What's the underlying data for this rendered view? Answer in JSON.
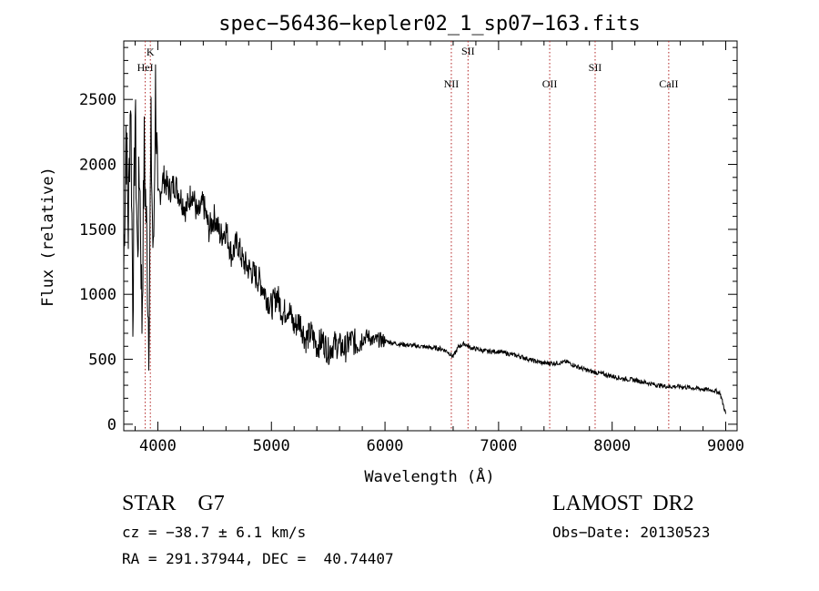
{
  "chart_data": {
    "type": "line",
    "title": "spec−56436−kepler02_1_sp07−163.fits",
    "xlabel": "Wavelength (Å)",
    "ylabel": "Flux (relative)",
    "xlim": [
      3700,
      9100
    ],
    "ylim": [
      -50,
      2950
    ],
    "xticks": [
      4000,
      5000,
      6000,
      7000,
      8000,
      9000
    ],
    "yticks": [
      0,
      500,
      1000,
      1500,
      2000,
      2500
    ],
    "xtick_labels": [
      "4000",
      "5000",
      "6000",
      "7000",
      "8000",
      "9000"
    ],
    "ytick_labels": [
      "0",
      "500",
      "1000",
      "1500",
      "2000",
      "2500"
    ],
    "line_color": "#000000",
    "marker_color": "#b22222",
    "lines": [
      {
        "name": "K",
        "wavelength": 3934
      },
      {
        "name": "HeI",
        "wavelength": 3889
      },
      {
        "name": "NII",
        "wavelength": 6584
      },
      {
        "name": "SII",
        "wavelength": 6731
      },
      {
        "name": "OII",
        "wavelength": 7450
      },
      {
        "name": "SII",
        "wavelength": 7850
      },
      {
        "name": "CaII",
        "wavelength": 8498
      }
    ],
    "series": [
      {
        "x": [
          3700,
          3720,
          3740,
          3760,
          3780,
          3800,
          3820,
          3840,
          3860,
          3880,
          3900,
          3920,
          3940,
          3960,
          3980,
          4000,
          4050,
          4100,
          4150,
          4200,
          4250,
          4300,
          4350,
          4400,
          4450,
          4500,
          4550,
          4600,
          4650,
          4700,
          4750,
          4800,
          4850,
          4900,
          4950,
          5000,
          5050,
          5100,
          5150,
          5200,
          5250,
          5300,
          5350,
          5400,
          5450,
          5500,
          5550,
          5600,
          5650,
          5700,
          5750,
          5800,
          5850,
          5900,
          5950,
          6000,
          6100,
          6200,
          6300,
          6400,
          6500,
          6550,
          6600,
          6650,
          6700,
          6750,
          6800,
          6900,
          7000,
          7100,
          7200,
          7300,
          7400,
          7500,
          7600,
          7700,
          7800,
          7900,
          8000,
          8100,
          8200,
          8300,
          8400,
          8500,
          8600,
          8700,
          8800,
          8900,
          8950,
          9000
        ],
        "y": [
          1200,
          2300,
          1500,
          2600,
          900,
          2400,
          1300,
          2000,
          800,
          2100,
          1500,
          700,
          2200,
          1200,
          2600,
          1700,
          1900,
          1800,
          1850,
          1750,
          1650,
          1800,
          1600,
          1700,
          1500,
          1600,
          1450,
          1500,
          1300,
          1400,
          1250,
          1200,
          1150,
          1100,
          1000,
          900,
          1000,
          850,
          900,
          750,
          800,
          650,
          700,
          600,
          650,
          560,
          620,
          600,
          580,
          650,
          620,
          660,
          680,
          640,
          650,
          640,
          620,
          610,
          600,
          590,
          580,
          560,
          520,
          600,
          620,
          590,
          580,
          560,
          560,
          540,
          520,
          490,
          470,
          470,
          480,
          440,
          410,
          390,
          370,
          350,
          340,
          320,
          300,
          290,
          290,
          280,
          270,
          260,
          240,
          80
        ]
      }
    ]
  },
  "info": {
    "sp_type": "STAR    G7",
    "survey": "LAMOST  DR2",
    "cz": "cz = −38.7 ± 6.1 km/s",
    "obs_date": "Obs−Date: 20130523",
    "coords": "RA = 291.37944, DEC =  40.74407"
  }
}
